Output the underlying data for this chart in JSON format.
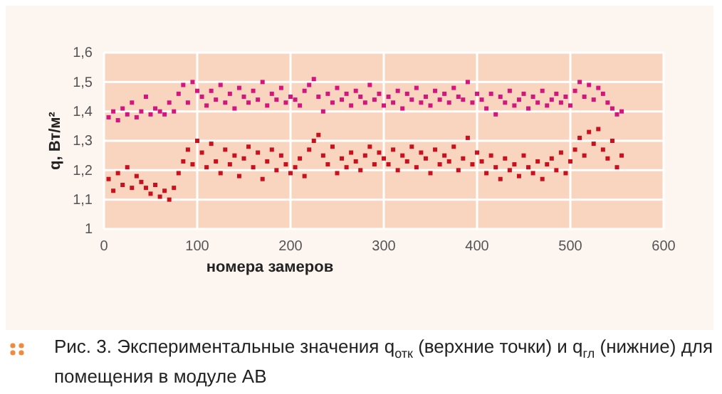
{
  "chart_data": {
    "type": "scatter",
    "xlabel": "номера замеров",
    "ylabel": "q, Вт/м²",
    "marker": "square",
    "grid": true,
    "legend": false,
    "xlim": [
      0,
      600
    ],
    "xticks": [
      0,
      100,
      200,
      300,
      400,
      500,
      600
    ],
    "ylim": [
      1,
      1.6
    ],
    "yticks": [
      {
        "value": 1,
        "label": "1"
      },
      {
        "value": 1.1,
        "label": "1,1"
      },
      {
        "value": 1.2,
        "label": "1,2"
      },
      {
        "value": 1.3,
        "label": "1,3"
      },
      {
        "value": 1.4,
        "label": "1,4"
      },
      {
        "value": 1.5,
        "label": "1,5"
      },
      {
        "value": 1.6,
        "label": "1,6"
      }
    ],
    "annotations": [
      "Рис. 3. Экспериментальные значения q$_{отк}$ (верхние точки) и q$_{гл}$ (нижние) для помещения в модуле АВ"
    ],
    "series": [
      {
        "color": "#d4157f",
        "values": [
          1.38,
          1.4,
          1.37,
          1.41,
          1.39,
          1.43,
          1.38,
          1.4,
          1.45,
          1.39,
          1.41,
          1.4,
          1.39,
          1.43,
          1.4,
          1.46,
          1.49,
          1.43,
          1.5,
          1.47,
          1.45,
          1.42,
          1.47,
          1.44,
          1.49,
          1.43,
          1.46,
          1.41,
          1.48,
          1.45,
          1.43,
          1.47,
          1.44,
          1.5,
          1.42,
          1.46,
          1.44,
          1.48,
          1.43,
          1.45,
          1.44,
          1.42,
          1.47,
          1.49,
          1.51,
          1.45,
          1.4,
          1.46,
          1.43,
          1.48,
          1.44,
          1.46,
          1.42,
          1.47,
          1.45,
          1.43,
          1.49,
          1.44,
          1.46,
          1.42,
          1.45,
          1.43,
          1.47,
          1.41,
          1.46,
          1.44,
          1.48,
          1.43,
          1.45,
          1.42,
          1.47,
          1.44,
          1.46,
          1.43,
          1.48,
          1.45,
          1.44,
          1.5,
          1.43,
          1.46,
          1.44,
          1.41,
          1.46,
          1.39,
          1.45,
          1.43,
          1.47,
          1.42,
          1.44,
          1.46,
          1.41,
          1.45,
          1.43,
          1.47,
          1.42,
          1.44,
          1.46,
          1.43,
          1.45,
          1.42,
          1.47,
          1.5,
          1.45,
          1.49,
          1.44,
          1.48,
          1.46,
          1.43,
          1.41,
          1.39,
          1.4
        ]
      },
      {
        "color": "#c8101e",
        "values": [
          1.17,
          1.13,
          1.19,
          1.15,
          1.21,
          1.14,
          1.18,
          1.16,
          1.14,
          1.12,
          1.15,
          1.11,
          1.13,
          1.1,
          1.14,
          1.19,
          1.23,
          1.27,
          1.22,
          1.3,
          1.26,
          1.21,
          1.29,
          1.23,
          1.19,
          1.27,
          1.22,
          1.25,
          1.18,
          1.24,
          1.28,
          1.21,
          1.26,
          1.17,
          1.23,
          1.27,
          1.2,
          1.25,
          1.22,
          1.19,
          1.21,
          1.24,
          1.18,
          1.27,
          1.3,
          1.32,
          1.25,
          1.22,
          1.28,
          1.19,
          1.24,
          1.21,
          1.26,
          1.23,
          1.2,
          1.25,
          1.28,
          1.22,
          1.26,
          1.24,
          1.22,
          1.27,
          1.2,
          1.25,
          1.23,
          1.28,
          1.21,
          1.26,
          1.24,
          1.19,
          1.27,
          1.22,
          1.25,
          1.23,
          1.28,
          1.2,
          1.24,
          1.31,
          1.22,
          1.26,
          1.23,
          1.19,
          1.25,
          1.21,
          1.17,
          1.24,
          1.2,
          1.22,
          1.18,
          1.25,
          1.21,
          1.19,
          1.23,
          1.17,
          1.22,
          1.24,
          1.2,
          1.26,
          1.19,
          1.23,
          1.27,
          1.31,
          1.25,
          1.33,
          1.29,
          1.34,
          1.27,
          1.24,
          1.3,
          1.21,
          1.25
        ]
      }
    ],
    "x": [
      5,
      10,
      15,
      20,
      25,
      30,
      35,
      40,
      45,
      50,
      55,
      60,
      65,
      70,
      75,
      80,
      85,
      90,
      95,
      100,
      105,
      110,
      115,
      120,
      125,
      130,
      135,
      140,
      145,
      150,
      155,
      160,
      165,
      170,
      175,
      180,
      185,
      190,
      195,
      200,
      205,
      210,
      215,
      220,
      225,
      230,
      235,
      240,
      245,
      250,
      255,
      260,
      265,
      270,
      275,
      280,
      285,
      290,
      295,
      300,
      305,
      310,
      315,
      320,
      325,
      330,
      335,
      340,
      345,
      350,
      355,
      360,
      365,
      370,
      375,
      380,
      385,
      390,
      395,
      400,
      405,
      410,
      415,
      420,
      425,
      430,
      435,
      440,
      445,
      450,
      455,
      460,
      465,
      470,
      475,
      480,
      485,
      490,
      495,
      500,
      505,
      510,
      515,
      520,
      525,
      530,
      535,
      540,
      545,
      550,
      555
    ]
  }
}
